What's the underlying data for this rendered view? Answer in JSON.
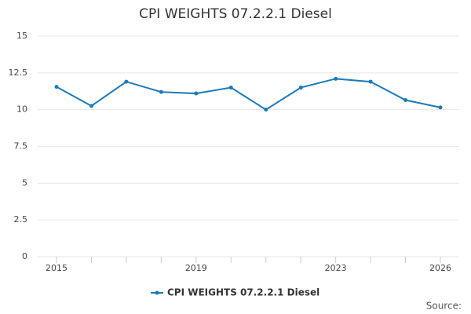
{
  "chart_data": {
    "type": "line",
    "title": "CPI WEIGHTS 07.2.2.1 Diesel",
    "categories": [
      "2015",
      null,
      null,
      null,
      "2019",
      null,
      null,
      null,
      "2023",
      null,
      null,
      "2026"
    ],
    "series": [
      {
        "name": "CPI WEIGHTS 07.2.2.1 Diesel",
        "color": "#1a7ab9",
        "values": [
          11.55,
          10.25,
          11.9,
          11.2,
          11.1,
          11.5,
          10.0,
          11.5,
          12.1,
          11.9,
          10.65,
          10.15
        ]
      }
    ],
    "ylim": [
      0,
      15
    ],
    "yticks": [
      0,
      2.5,
      5,
      7.5,
      10,
      12.5,
      15
    ],
    "grid": true,
    "legend": "bottom",
    "source": "Source:"
  }
}
